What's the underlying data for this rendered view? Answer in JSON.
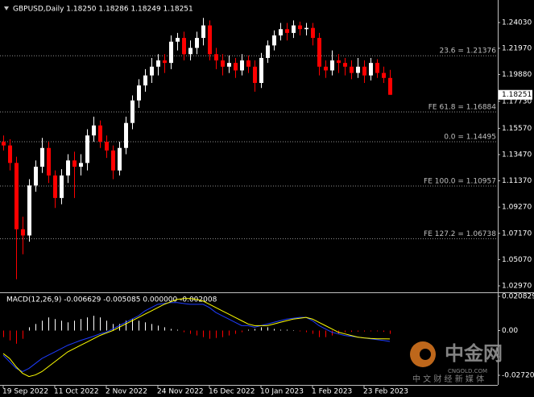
{
  "chart_data": [
    {
      "type": "candlestick",
      "title": "GBPUSD,Daily  1.18250 1.18286 1.18249 1.18251",
      "categories": [
        "19 Sep 2022",
        null,
        null,
        null,
        null,
        null,
        null,
        null,
        "11 Oct 2022",
        null,
        null,
        null,
        null,
        null,
        null,
        null,
        "2 Nov 2022",
        null,
        null,
        null,
        null,
        null,
        null,
        null,
        "24 Nov 2022",
        null,
        null,
        null,
        null,
        null,
        null,
        null,
        "16 Dec 2022",
        null,
        null,
        null,
        null,
        null,
        null,
        null,
        "10 Jan 2023",
        null,
        null,
        null,
        null,
        null,
        null,
        null,
        "1 Feb 2023",
        null,
        null,
        null,
        null,
        null,
        null,
        null,
        "23 Feb 2023",
        null,
        null,
        null,
        null
      ],
      "open": [
        1.145,
        1.142,
        1.128,
        1.075,
        1.07,
        1.11,
        1.125,
        1.14,
        1.118,
        1.1,
        1.118,
        1.13,
        1.125,
        1.128,
        1.15,
        1.158,
        1.145,
        1.138,
        1.122,
        1.14,
        1.16,
        1.178,
        1.19,
        1.198,
        1.205,
        1.21,
        1.208,
        1.225,
        1.228,
        1.215,
        1.22,
        1.228,
        1.238,
        1.215,
        1.21,
        1.205,
        1.208,
        1.202,
        1.21,
        1.205,
        1.192,
        1.212,
        1.222,
        1.23,
        1.235,
        1.232,
        1.238,
        1.235,
        1.236,
        1.228,
        1.205,
        1.202,
        1.21,
        1.208,
        1.205,
        1.2,
        1.205,
        1.198,
        1.208,
        1.2,
        1.196
      ],
      "high": [
        1.15,
        1.147,
        1.133,
        1.085,
        1.115,
        1.13,
        1.148,
        1.145,
        1.122,
        1.123,
        1.135,
        1.137,
        1.135,
        1.155,
        1.165,
        1.162,
        1.15,
        1.142,
        1.145,
        1.165,
        1.182,
        1.195,
        1.203,
        1.212,
        1.215,
        1.215,
        1.23,
        1.232,
        1.233,
        1.226,
        1.233,
        1.244,
        1.242,
        1.22,
        1.215,
        1.214,
        1.212,
        1.215,
        1.214,
        1.21,
        1.216,
        1.226,
        1.234,
        1.24,
        1.24,
        1.242,
        1.241,
        1.24,
        1.24,
        1.232,
        1.21,
        1.218,
        1.215,
        1.212,
        1.21,
        1.212,
        1.21,
        1.212,
        1.211,
        1.205,
        1.2025
      ],
      "low": [
        1.138,
        1.122,
        1.035,
        1.055,
        1.065,
        1.105,
        1.12,
        1.112,
        1.092,
        1.095,
        1.112,
        1.1,
        1.118,
        1.122,
        1.145,
        1.14,
        1.132,
        1.115,
        1.118,
        1.135,
        1.155,
        1.172,
        1.185,
        1.192,
        1.198,
        1.2,
        1.203,
        1.218,
        1.21,
        1.21,
        1.215,
        1.222,
        1.21,
        1.203,
        1.198,
        1.2,
        1.196,
        1.198,
        1.2,
        1.185,
        1.188,
        1.208,
        1.218,
        1.226,
        1.226,
        1.228,
        1.23,
        1.23,
        1.222,
        1.198,
        1.196,
        1.198,
        1.2,
        1.198,
        1.195,
        1.196,
        1.192,
        1.194,
        1.196,
        1.192,
        1.18249
      ],
      "close": [
        1.142,
        1.128,
        1.075,
        1.07,
        1.11,
        1.125,
        1.14,
        1.118,
        1.1,
        1.118,
        1.13,
        1.125,
        1.128,
        1.15,
        1.158,
        1.145,
        1.138,
        1.122,
        1.14,
        1.16,
        1.178,
        1.19,
        1.198,
        1.205,
        1.21,
        1.208,
        1.225,
        1.228,
        1.215,
        1.22,
        1.228,
        1.238,
        1.215,
        1.21,
        1.205,
        1.208,
        1.202,
        1.21,
        1.205,
        1.192,
        1.212,
        1.222,
        1.23,
        1.235,
        1.232,
        1.238,
        1.235,
        1.236,
        1.228,
        1.205,
        1.202,
        1.21,
        1.208,
        1.205,
        1.2,
        1.205,
        1.198,
        1.208,
        1.2,
        1.196,
        1.18251
      ],
      "up_color": "#ffffff",
      "down_color": "#ff0000",
      "ylim": [
        1.02519,
        1.25511
      ],
      "yticks": [
        {
          "value": 1.2403,
          "label": "1.24030"
        },
        {
          "value": 1.2197,
          "label": "1.21970"
        },
        {
          "value": 1.1988,
          "label": "1.19880"
        },
        {
          "value": 1.1773,
          "label": "1.17730"
        },
        {
          "value": 1.1557,
          "label": "1.15570"
        },
        {
          "value": 1.1347,
          "label": "1.13470"
        },
        {
          "value": 1.1137,
          "label": "1.11370"
        },
        {
          "value": 1.0927,
          "label": "1.09270"
        },
        {
          "value": 1.0717,
          "label": "1.07170"
        },
        {
          "value": 1.0507,
          "label": "1.05070"
        },
        {
          "value": 1.0297,
          "label": "1.02970"
        }
      ],
      "levels": [
        {
          "value": 1.21376,
          "label": "23.6 = 1.21376"
        },
        {
          "value": 1.16884,
          "label": "FE 61.8 = 1.16884"
        },
        {
          "value": 1.14495,
          "label": "0.0 = 1.14495"
        },
        {
          "value": 1.10957,
          "label": "FE 100.0 = 1.10957"
        },
        {
          "value": 1.06738,
          "label": "FE 127.2 = 1.06738"
        }
      ],
      "last_price": {
        "value": 1.18251,
        "label": "1.18251"
      }
    },
    {
      "type": "macd",
      "title": "MACD(12,26,9) -0.006629 -0.005085 0.000000 -0.002008",
      "histogram": [
        -0.004,
        -0.006,
        -0.008,
        -0.005,
        0.002,
        0.004,
        0.006,
        0.008,
        0.007,
        0.006,
        0.005,
        0.006,
        0.007,
        0.008,
        0.009,
        0.008,
        0.006,
        0.004,
        0.004,
        0.006,
        0.007,
        0.006,
        0.005,
        0.004,
        0.003,
        0.002,
        0.001,
        0.0005,
        -0.001,
        -0.002,
        -0.003,
        -0.004,
        -0.005,
        -0.0045,
        -0.004,
        -0.003,
        -0.002,
        -0.001,
        0.0005,
        0.001,
        0.002,
        0.002,
        0.001,
        0.0005,
        0.0005,
        0,
        -0.0005,
        -0.001,
        -0.002,
        -0.004,
        -0.004,
        -0.003,
        -0.002,
        -0.001,
        -0.0008,
        -0.0007,
        -0.0006,
        -0.0005,
        -0.0005,
        -0.0008,
        -0.002008
      ],
      "macd_line": [
        -0.015,
        -0.019,
        -0.023,
        -0.025,
        -0.023,
        -0.02,
        -0.017,
        -0.015,
        -0.013,
        -0.011,
        -0.009,
        -0.0075,
        -0.006,
        -0.0048,
        -0.0035,
        -0.002,
        -0.001,
        0.001,
        0.003,
        0.005,
        0.007,
        0.009,
        0.012,
        0.014,
        0.016,
        0.0165,
        0.017,
        0.017,
        0.0165,
        0.016,
        0.016,
        0.016,
        0.014,
        0.011,
        0.009,
        0.007,
        0.005,
        0.003,
        0.003,
        0.002,
        0.003,
        0.004,
        0.005,
        0.006,
        0.007,
        0.0075,
        0.008,
        0.008,
        0.006,
        0.003,
        0.001,
        -0.001,
        -0.002,
        -0.003,
        -0.0035,
        -0.004,
        -0.0045,
        -0.005,
        -0.0055,
        -0.006,
        -0.006629
      ],
      "signal_line": [
        -0.014,
        -0.017,
        -0.022,
        -0.026,
        -0.028,
        -0.027,
        -0.025,
        -0.022,
        -0.019,
        -0.016,
        -0.013,
        -0.011,
        -0.009,
        -0.007,
        -0.005,
        -0.003,
        -0.0015,
        0,
        0.002,
        0.004,
        0.006,
        0.008,
        0.01,
        0.012,
        0.014,
        0.016,
        0.0175,
        0.019,
        0.0195,
        0.0195,
        0.019,
        0.018,
        0.016,
        0.014,
        0.012,
        0.01,
        0.008,
        0.006,
        0.004,
        0.003,
        0.003,
        0.003,
        0.004,
        0.005,
        0.006,
        0.007,
        0.0075,
        0.008,
        0.007,
        0.005,
        0.003,
        0.001,
        -0.001,
        -0.002,
        -0.003,
        -0.004,
        -0.0045,
        -0.0048,
        -0.005,
        -0.005,
        -0.005085
      ],
      "pos_color": "#ffffff",
      "neg_color": "#ff0000",
      "macd_color": "#1e3cff",
      "signal_color": "#ffff00",
      "ylim": [
        -0.0326,
        0.0223
      ],
      "yticks": [
        0.020829,
        {
          "value": 0,
          "label": "0.00"
        },
        -0.027204
      ]
    }
  ],
  "watermark": {
    "brand": "中金网",
    "site": "CNGOLD.COM",
    "slogan": "中 文 财 经 新 媒 体"
  }
}
